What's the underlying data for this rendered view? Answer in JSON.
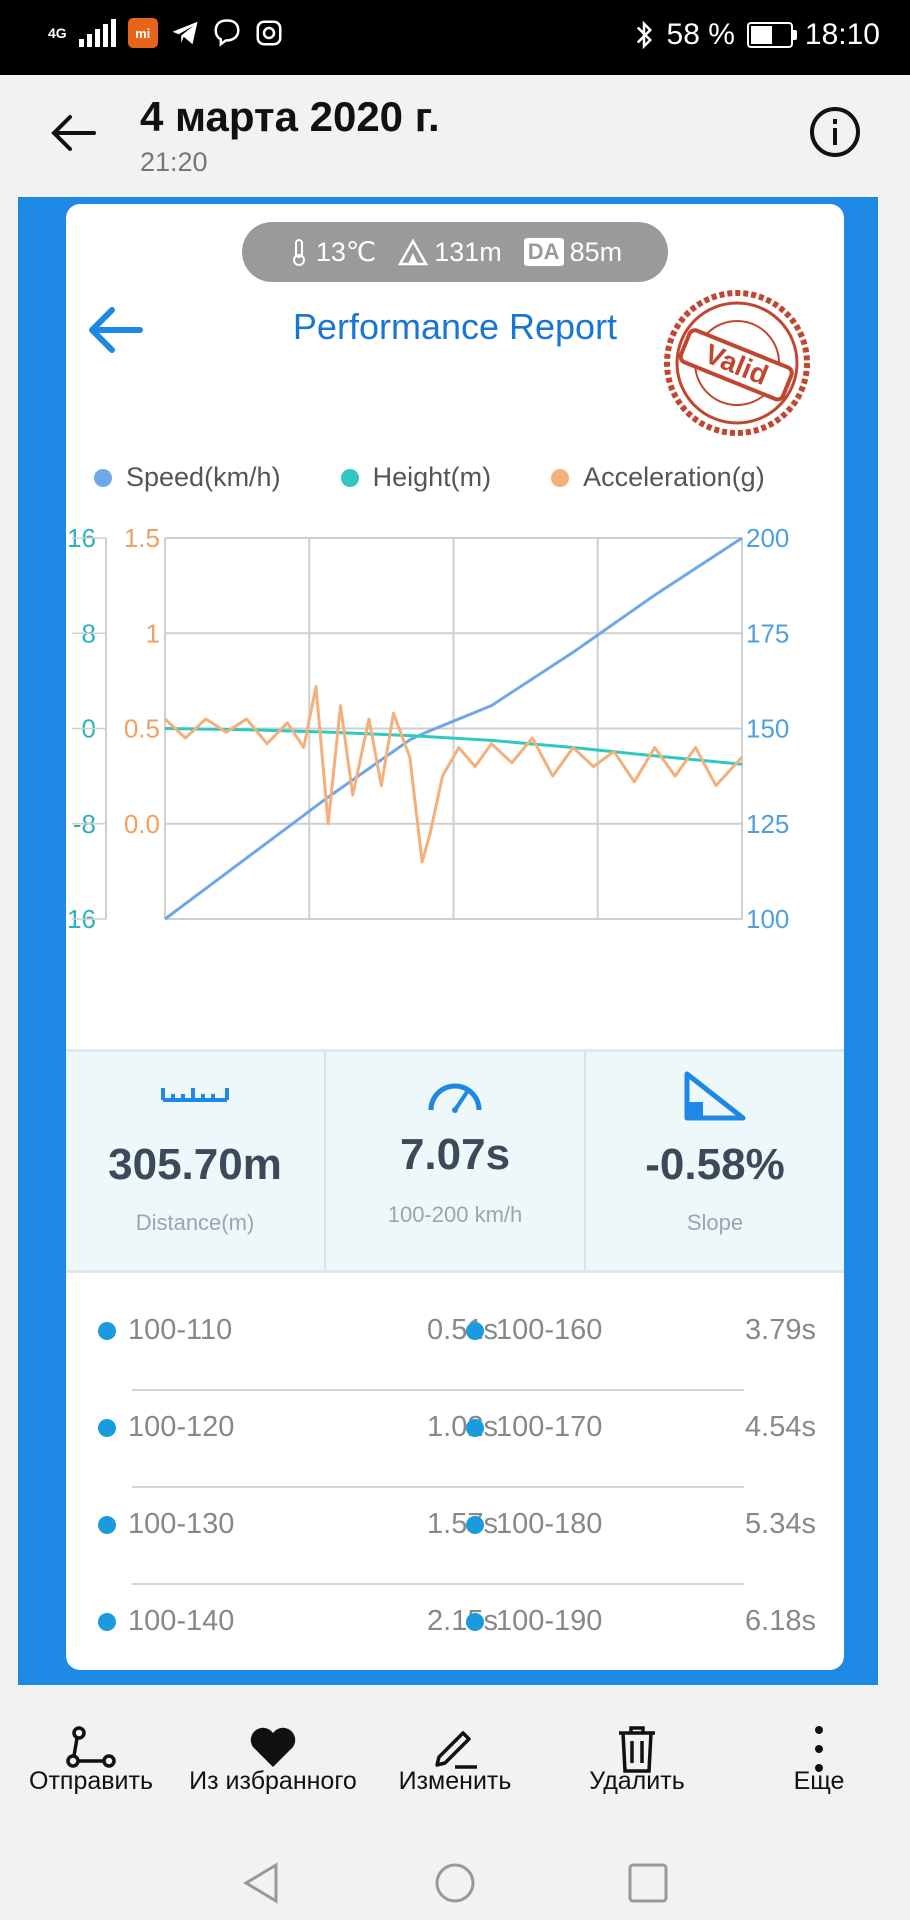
{
  "status_bar": {
    "network": "4G",
    "battery": "58 %",
    "battery_level": 0.58,
    "time": "18:10"
  },
  "header": {
    "title": "4 марта 2020 г.",
    "subtitle": "21:20"
  },
  "conditions": {
    "temperature": "13℃",
    "altitude": "131m",
    "density_altitude_label": "DA",
    "density_altitude": "85m"
  },
  "report": {
    "title": "Performance Report",
    "stamp_text": "Valid"
  },
  "legend": [
    {
      "label": "Speed(km/h)",
      "color": "#6fa8e8"
    },
    {
      "label": "Height(m)",
      "color": "#2ec9c0"
    },
    {
      "label": "Acceleration(g)",
      "color": "#f4b07a"
    }
  ],
  "chart_data": {
    "type": "line",
    "x_range": [
      0,
      7.07
    ],
    "axes": {
      "height_ticks": [
        "16",
        "8",
        "0",
        "-8",
        "-16"
      ],
      "acceleration_ticks": [
        "1.5",
        "1",
        "0.5",
        "0.0"
      ],
      "speed_ticks": [
        "200",
        "175",
        "150",
        "125",
        "100"
      ],
      "speed_range": [
        100,
        200
      ],
      "height_range": [
        -16,
        16
      ],
      "acceleration_range": [
        -0.5,
        1.5
      ]
    },
    "grid": true,
    "series": [
      {
        "name": "Speed(km/h)",
        "color": "#6fa8e8",
        "x": [
          0,
          1.0,
          2.0,
          3.0,
          3.2,
          4.0,
          5.0,
          6.0,
          7.07
        ],
        "y": [
          100,
          116,
          132,
          147,
          149,
          156,
          170,
          185,
          200
        ]
      },
      {
        "name": "Height(m)",
        "color": "#2ec9c0",
        "x": [
          0,
          1,
          2,
          3,
          4,
          5,
          6,
          7.07
        ],
        "y": [
          0,
          -0.1,
          -0.3,
          -0.6,
          -1.0,
          -1.6,
          -2.3,
          -3.0
        ]
      },
      {
        "name": "Acceleration(g)",
        "color": "#f4b07a",
        "x": [
          0,
          0.25,
          0.5,
          0.75,
          1.0,
          1.25,
          1.5,
          1.7,
          1.85,
          2.0,
          2.15,
          2.3,
          2.5,
          2.65,
          2.8,
          3.0,
          3.15,
          3.25,
          3.4,
          3.6,
          3.8,
          4.0,
          4.25,
          4.5,
          4.75,
          5.0,
          5.25,
          5.5,
          5.75,
          6.0,
          6.25,
          6.5,
          6.75,
          7.07
        ],
        "y": [
          0.55,
          0.45,
          0.55,
          0.48,
          0.55,
          0.42,
          0.53,
          0.4,
          0.72,
          0.0,
          0.62,
          0.15,
          0.55,
          0.2,
          0.58,
          0.35,
          -0.2,
          -0.05,
          0.25,
          0.4,
          0.3,
          0.42,
          0.32,
          0.45,
          0.25,
          0.4,
          0.3,
          0.38,
          0.22,
          0.4,
          0.25,
          0.4,
          0.2,
          0.35
        ]
      }
    ]
  },
  "stats": [
    {
      "icon": "ruler-icon",
      "value": "305.70m",
      "label": "Distance(m)"
    },
    {
      "icon": "speedometer-icon",
      "value": "7.07s",
      "label": "100-200 km/h"
    },
    {
      "icon": "slope-icon",
      "value": "-0.58%",
      "label": "Slope"
    }
  ],
  "splits": [
    [
      {
        "range": "100-110",
        "time": "0.51s"
      },
      {
        "range": "100-160",
        "time": "3.79s"
      }
    ],
    [
      {
        "range": "100-120",
        "time": "1.02s"
      },
      {
        "range": "100-170",
        "time": "4.54s"
      }
    ],
    [
      {
        "range": "100-130",
        "time": "1.57s"
      },
      {
        "range": "100-180",
        "time": "5.34s"
      }
    ],
    [
      {
        "range": "100-140",
        "time": "2.15s"
      },
      {
        "range": "100-190",
        "time": "6.18s"
      }
    ]
  ],
  "actions": [
    {
      "icon": "share-icon",
      "label": "Отправить"
    },
    {
      "icon": "heart-icon",
      "label": "Из избранного"
    },
    {
      "icon": "edit-icon",
      "label": "Изменить"
    },
    {
      "icon": "trash-icon",
      "label": "Удалить"
    },
    {
      "icon": "more-icon",
      "label": "Еще"
    }
  ],
  "colors": {
    "accent": "#1e88e5",
    "title_blue": "#1976d2",
    "stamp_red": "#c2452f"
  }
}
